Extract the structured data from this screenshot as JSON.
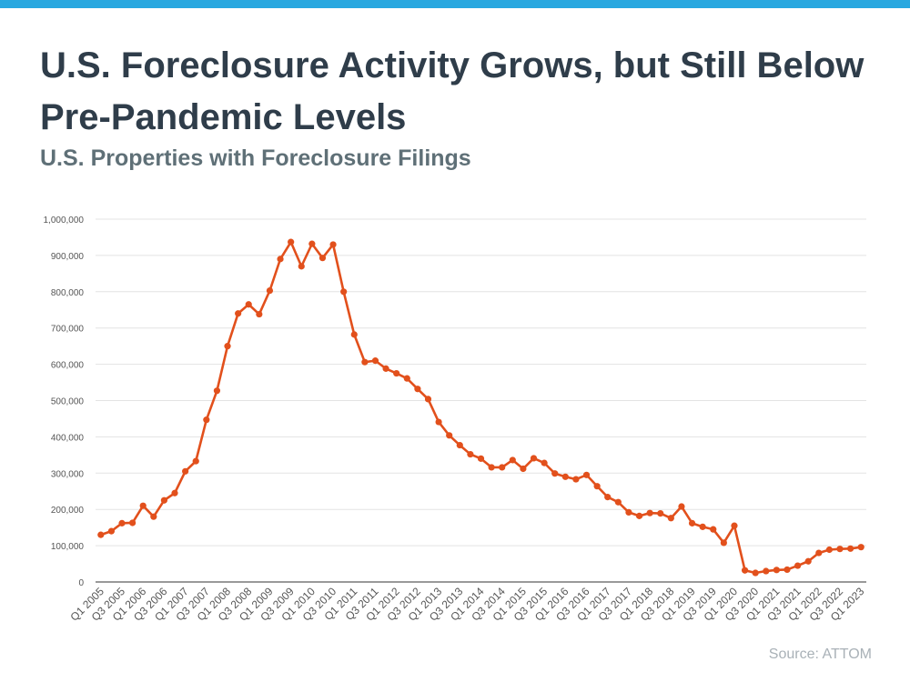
{
  "header": {
    "title": "U.S. Foreclosure Activity Grows, but Still Below Pre-Pandemic Levels",
    "subtitle": "U.S. Properties with Foreclosure Filings"
  },
  "footer": {
    "source": "Source: ATTOM"
  },
  "colors": {
    "accent_bar": "#29a8e0",
    "line": "#e2501c",
    "grid": "#e3e3e3",
    "title": "#2f3d4a"
  },
  "chart_data": {
    "type": "line",
    "title": "U.S. Foreclosure Activity Grows, but Still Below Pre-Pandemic Levels",
    "subtitle": "U.S. Properties with Foreclosure Filings",
    "xlabel": "",
    "ylabel": "",
    "ylim": [
      0,
      1000000
    ],
    "yticks": [
      0,
      100000,
      200000,
      300000,
      400000,
      500000,
      600000,
      700000,
      800000,
      900000,
      1000000
    ],
    "ytick_labels": [
      "0",
      "100,000",
      "200,000",
      "300,000",
      "400,000",
      "500,000",
      "600,000",
      "700,000",
      "800,000",
      "900,000",
      "1,000,000"
    ],
    "grid": true,
    "legend": "none",
    "x": [
      "Q1 2005",
      "Q2 2005",
      "Q3 2005",
      "Q4 2005",
      "Q1 2006",
      "Q2 2006",
      "Q3 2006",
      "Q4 2006",
      "Q1 2007",
      "Q2 2007",
      "Q3 2007",
      "Q4 2007",
      "Q1 2008",
      "Q2 2008",
      "Q3 2008",
      "Q4 2008",
      "Q1 2009",
      "Q2 2009",
      "Q3 2009",
      "Q4 2009",
      "Q1 2010",
      "Q2 2010",
      "Q3 2010",
      "Q4 2010",
      "Q1 2011",
      "Q2 2011",
      "Q3 2011",
      "Q4 2011",
      "Q1 2012",
      "Q2 2012",
      "Q3 2012",
      "Q4 2012",
      "Q1 2013",
      "Q2 2013",
      "Q3 2013",
      "Q4 2013",
      "Q1 2014",
      "Q2 2014",
      "Q3 2014",
      "Q4 2014",
      "Q1 2015",
      "Q2 2015",
      "Q3 2015",
      "Q4 2015",
      "Q1 2016",
      "Q2 2016",
      "Q3 2016",
      "Q4 2016",
      "Q1 2017",
      "Q2 2017",
      "Q3 2017",
      "Q4 2017",
      "Q1 2018",
      "Q2 2018",
      "Q3 2018",
      "Q4 2018",
      "Q1 2019",
      "Q2 2019",
      "Q3 2019",
      "Q4 2019",
      "Q1 2020",
      "Q2 2020",
      "Q3 2020",
      "Q4 2020",
      "Q1 2021",
      "Q2 2021",
      "Q3 2021",
      "Q4 2021",
      "Q1 2022",
      "Q2 2022",
      "Q3 2022",
      "Q4 2022",
      "Q1 2023"
    ],
    "xtick_labels": [
      "Q1 2005",
      "Q3 2005",
      "Q1 2006",
      "Q3 2006",
      "Q1 2007",
      "Q3 2007",
      "Q1 2008",
      "Q3 2008",
      "Q1 2009",
      "Q3 2009",
      "Q1 2010",
      "Q3 2010",
      "Q1 2011",
      "Q3 2011",
      "Q1 2012",
      "Q3 2012",
      "Q1 2013",
      "Q3 2013",
      "Q1 2014",
      "Q3 2014",
      "Q1 2015",
      "Q3 2015",
      "Q1 2016",
      "Q3 2016",
      "Q1 2017",
      "Q3 2017",
      "Q1 2018",
      "Q3 2018",
      "Q1 2019",
      "Q3 2019",
      "Q1 2020",
      "Q3 2020",
      "Q1 2021",
      "Q3 2021",
      "Q1 2022",
      "Q3 2022",
      "Q1 2023"
    ],
    "series": [
      {
        "values": [
          130000,
          140000,
          162000,
          163000,
          210000,
          180000,
          225000,
          245000,
          305000,
          333000,
          447000,
          527000,
          650000,
          740000,
          765000,
          738000,
          803000,
          890000,
          937000,
          870000,
          932000,
          893000,
          930000,
          800000,
          682000,
          606000,
          610000,
          588000,
          575000,
          561000,
          532000,
          504000,
          441000,
          404000,
          377000,
          352000,
          340000,
          316000,
          316000,
          336000,
          312000,
          341000,
          328000,
          299000,
          290000,
          283000,
          295000,
          264000,
          234000,
          220000,
          192000,
          182000,
          190000,
          189000,
          176000,
          208000,
          162000,
          152000,
          145000,
          108000,
          155000,
          32000,
          25000,
          30000,
          33000,
          34000,
          45000,
          57000,
          80000,
          89000,
          91000,
          92000,
          96000
        ]
      }
    ]
  }
}
